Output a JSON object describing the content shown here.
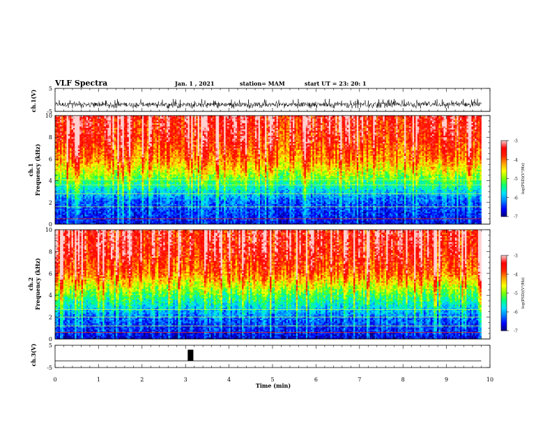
{
  "header": {
    "title": "VLF Spectra",
    "date": "Jan. 1 , 2021",
    "station": "station= MAM",
    "start": "start  UT =  23: 20: 1"
  },
  "colorbar": {
    "label": "log(PSD)(V²/Hz)",
    "ticks": [
      "-3",
      "-4",
      "-5",
      "-6",
      "-7"
    ],
    "palette": [
      "#000080",
      "#0000ff",
      "#0080ff",
      "#00e0ff",
      "#00ff80",
      "#80ff00",
      "#ffff00",
      "#ffa000",
      "#ff2000",
      "#ff0000",
      "#ffd0d0"
    ]
  },
  "chart_data": [
    {
      "type": "line",
      "name_label": "ch.1(V)",
      "xlabel": "",
      "ylabel": "ch.1(V)",
      "xlim": [
        0,
        10
      ],
      "ylim": [
        -5,
        5
      ],
      "yticks": [
        "5",
        "-5"
      ],
      "description_values": {
        "signal_center": -2,
        "signal_min": -3.8,
        "signal_max": 0.5,
        "signal_end_min": 9.8
      }
    },
    {
      "type": "heatmap",
      "ylabel": "Frequency (kHz)",
      "channel_label": "ch.1",
      "xlim": [
        0,
        10
      ],
      "ylim": [
        0,
        10
      ],
      "yticks": [
        "10",
        "8",
        "6",
        "4",
        "2",
        "0"
      ],
      "zlim": [
        -7,
        -3
      ],
      "z_profile_by_freq": [
        [
          0,
          -6.6
        ],
        [
          2,
          -6.3
        ],
        [
          3,
          -5.8
        ],
        [
          4,
          -5.2
        ],
        [
          5,
          -4.6
        ],
        [
          6,
          -4.1
        ],
        [
          8,
          -3.6
        ],
        [
          10,
          -3.4
        ]
      ],
      "tone_lines_khz": [
        0.5,
        1.6,
        2.8,
        3.6,
        4.1
      ],
      "data_end_min": 9.8
    },
    {
      "type": "heatmap",
      "ylabel": "Frequency (kHz)",
      "channel_label": "ch.2",
      "xlim": [
        0,
        10
      ],
      "ylim": [
        0,
        10
      ],
      "yticks": [
        "10",
        "8",
        "6",
        "4",
        "2",
        "0"
      ],
      "zlim": [
        -7,
        -3
      ],
      "z_profile_by_freq": [
        [
          0,
          -6.7
        ],
        [
          2,
          -6.2
        ],
        [
          3,
          -5.7
        ],
        [
          4,
          -5.2
        ],
        [
          5,
          -4.6
        ],
        [
          6,
          -4.0
        ],
        [
          8,
          -3.5
        ],
        [
          10,
          -3.4
        ]
      ],
      "tone_lines_khz": [
        0.6,
        1.2,
        2.0,
        2.7
      ],
      "data_end_min": 9.8
    },
    {
      "type": "line",
      "ylabel": "ch.3(V)",
      "xlim": [
        0,
        10
      ],
      "ylim": [
        -5,
        5
      ],
      "yticks": [
        "5",
        "-5"
      ],
      "baseline_value": -2,
      "pulse": {
        "x_start": 3.05,
        "x_end": 3.18,
        "y_top": 3
      }
    }
  ],
  "xaxis": {
    "label": "Time (min)",
    "ticks": [
      "0",
      "1",
      "2",
      "3",
      "4",
      "5",
      "6",
      "7",
      "8",
      "9",
      "10"
    ]
  }
}
